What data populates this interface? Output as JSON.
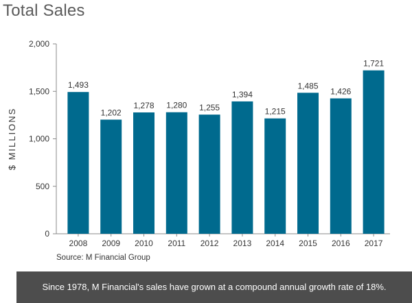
{
  "page": {
    "title": "Total Sales",
    "source": "Source: M Financial Group",
    "footnote": "Since 1978, M Financial's sales have grown at a compound annual growth rate of 18%."
  },
  "colors": {
    "bar": "#006a8e",
    "axis": "#888888",
    "text": "#333333",
    "footer_bg": "#4d4d4d"
  },
  "chart_data": {
    "type": "bar",
    "title": "Total Sales",
    "xlabel": "",
    "ylabel": "$ MILLIONS",
    "categories": [
      "2008",
      "2009",
      "2010",
      "2011",
      "2012",
      "2013",
      "2014",
      "2015",
      "2016",
      "2017"
    ],
    "values": [
      1493,
      1202,
      1278,
      1280,
      1255,
      1394,
      1215,
      1485,
      1426,
      1721
    ],
    "value_labels": [
      "1,493",
      "1,202",
      "1,278",
      "1,280",
      "1,255",
      "1,394",
      "1,215",
      "1,485",
      "1,426",
      "1,721"
    ],
    "ylim": [
      0,
      2000
    ],
    "yticks": [
      0,
      500,
      1000,
      1500,
      2000
    ],
    "ytick_labels": [
      "0",
      "500",
      "1,000",
      "1,500",
      "2,000"
    ],
    "grid": false,
    "legend": "none"
  }
}
